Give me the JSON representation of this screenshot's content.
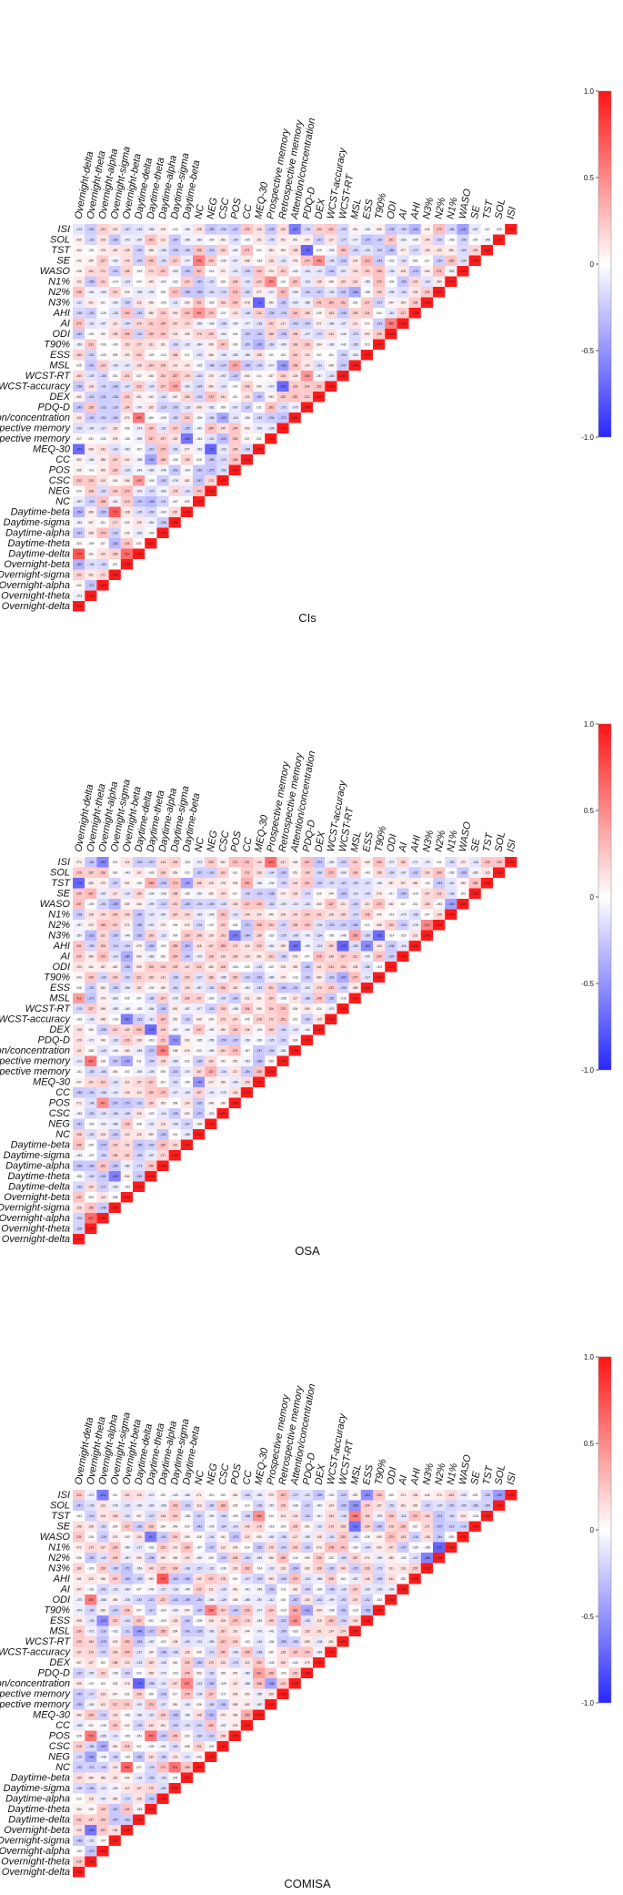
{
  "chart_data": [
    {
      "type": "heatmap",
      "title": "CIs",
      "row_labels": [
        "ISI",
        "SOL",
        "TST",
        "SE",
        "WASO",
        "N1%",
        "N2%",
        "N3%",
        "AHI",
        "AI",
        "ODI",
        "T90%",
        "ESS",
        "MSL",
        "WCST-RT",
        "WCST-accuracy",
        "DEX",
        "PDQ-D",
        "Attention/concentration",
        "Retrospective memory",
        "Prospective memory",
        "MEQ-30",
        "CC",
        "POS",
        "CSC",
        "NEG",
        "NC",
        "Daytime-beta",
        "Daytime-sigma",
        "Daytime-alpha",
        "Daytime-theta",
        "Daytime-delta",
        "Overnight-beta",
        "Overnight-sigma",
        "Overnight-alpha",
        "Overnight-theta",
        "Overnight-delta"
      ],
      "col_labels": [
        "Overnight-delta",
        "Overnight-theta",
        "Overnight-alpha",
        "Overnight-sigma",
        "Overnight-beta",
        "Daytime-delta",
        "Daytime-theta",
        "Daytime-alpha",
        "Daytime-sigma",
        "Daytime-beta",
        "NC",
        "NEG",
        "CSC",
        "POS",
        "CC",
        "MEQ-30",
        "Prospective memory",
        "Retrospective memory",
        "Attention/concentration",
        "PDQ-D",
        "DEX",
        "WCST-accuracy",
        "WCST-RT",
        "MSL",
        "ESS",
        "T90%",
        "ODI",
        "AI",
        "AHI",
        "N3%",
        "N2%",
        "N1%",
        "WASO",
        "SE",
        "TST",
        "SOL",
        "ISI"
      ],
      "highlights": [
        [
          5,
          34,
          0.62
        ],
        [
          2,
          36,
          -0.24
        ],
        [
          3,
          33,
          0.73
        ],
        [
          4,
          33,
          -0.52
        ],
        [
          5,
          31,
          0.48
        ],
        [
          6,
          30,
          -0.79
        ],
        [
          7,
          29,
          -0.61
        ],
        [
          9,
          27,
          0.88
        ],
        [
          10,
          26,
          0.71
        ],
        [
          11,
          25,
          0.64
        ],
        [
          15,
          22,
          -0.56
        ],
        [
          17,
          20,
          0.67
        ],
        [
          18,
          19,
          0.73
        ],
        [
          21,
          16,
          0.45
        ],
        [
          22,
          15,
          0.52
        ],
        [
          24,
          13,
          0.44
        ],
        [
          28,
          9,
          0.58
        ],
        [
          29,
          8,
          0.63
        ],
        [
          30,
          6,
          -0.72
        ],
        [
          31,
          5,
          -0.55
        ],
        [
          33,
          3,
          0.61
        ],
        [
          35,
          1,
          -0.66
        ],
        [
          2,
          26,
          -0.28
        ],
        [
          3,
          24,
          0.31
        ]
      ],
      "colorbar": {
        "min": -1.0,
        "max": 1.0,
        "ticks": [
          "1.0",
          "0.5",
          "0",
          "-0.5",
          "-1.0"
        ]
      },
      "seed": 11
    },
    {
      "type": "heatmap",
      "title": "OSA",
      "row_labels": [
        "ISI",
        "SOL",
        "TST",
        "SE",
        "WASO",
        "N1%",
        "N2%",
        "N3%",
        "AHI",
        "AI",
        "ODI",
        "T90%",
        "ESS",
        "MSL",
        "WCST-RT",
        "WCST-accuracy",
        "DEX",
        "PDQ-D",
        "Attention/concentration",
        "Retrospective memory",
        "Prospective memory",
        "MEQ-30",
        "CC",
        "POS",
        "CSC",
        "NEG",
        "NC",
        "Daytime-beta",
        "Daytime-sigma",
        "Daytime-alpha",
        "Daytime-theta",
        "Daytime-delta",
        "Overnight-beta",
        "Overnight-sigma",
        "Overnight-alpha",
        "Overnight-theta",
        "Overnight-delta"
      ],
      "col_labels": [
        "Overnight-delta",
        "Overnight-theta",
        "Overnight-alpha",
        "Overnight-sigma",
        "Overnight-beta",
        "Daytime-delta",
        "Daytime-theta",
        "Daytime-alpha",
        "Daytime-sigma",
        "Daytime-beta",
        "NC",
        "NEG",
        "CSC",
        "POS",
        "CC",
        "MEQ-30",
        "Prospective memory",
        "Retrospective memory",
        "Attention/concentration",
        "PDQ-D",
        "DEX",
        "WCST-accuracy",
        "WCST-RT",
        "MSL",
        "ESS",
        "T90%",
        "ODI",
        "AI",
        "AHI",
        "N3%",
        "N2%",
        "N1%",
        "WASO",
        "SE",
        "TST",
        "SOL",
        "ISI"
      ],
      "highlights": [
        [
          2,
          34,
          -0.42
        ],
        [
          3,
          33,
          0.75
        ],
        [
          4,
          32,
          -0.58
        ],
        [
          5,
          31,
          -0.67
        ],
        [
          6,
          30,
          0.52
        ],
        [
          8,
          28,
          0.81
        ],
        [
          9,
          27,
          0.74
        ],
        [
          10,
          26,
          0.69
        ],
        [
          13,
          23,
          -0.48
        ],
        [
          14,
          22,
          -0.62
        ],
        [
          17,
          19,
          0.71
        ],
        [
          18,
          18,
          0.66
        ],
        [
          22,
          14,
          0.55
        ],
        [
          26,
          10,
          0.47
        ],
        [
          28,
          8,
          0.68
        ],
        [
          29,
          7,
          -0.71
        ],
        [
          31,
          5,
          0.62
        ],
        [
          32,
          4,
          -0.64
        ],
        [
          34,
          2,
          0.72
        ],
        [
          36,
          0,
          -0.78
        ],
        [
          30,
          3,
          -0.59
        ]
      ],
      "colorbar": {
        "min": -1.0,
        "max": 1.0,
        "ticks": [
          "1.0",
          "0.5",
          "0",
          "-0.5",
          "-1.0"
        ]
      },
      "seed": 37
    },
    {
      "type": "heatmap",
      "title": "COMISA",
      "row_labels": [
        "ISI",
        "SOL",
        "TST",
        "SE",
        "WASO",
        "N1%",
        "N2%",
        "N3%",
        "AHI",
        "AI",
        "ODI",
        "T90%",
        "ESS",
        "MSL",
        "WCST-RT",
        "WCST-accuracy",
        "DEX",
        "PDQ-D",
        "Attention/concentration",
        "Retrospective memory",
        "Prospective memory",
        "MEQ-30",
        "CC",
        "POS",
        "CSC",
        "NEG",
        "NC",
        "Daytime-beta",
        "Daytime-sigma",
        "Daytime-alpha",
        "Daytime-theta",
        "Daytime-delta",
        "Overnight-beta",
        "Overnight-sigma",
        "Overnight-alpha",
        "Overnight-theta",
        "Overnight-delta"
      ],
      "col_labels": [
        "Overnight-delta",
        "Overnight-theta",
        "Overnight-alpha",
        "Overnight-sigma",
        "Overnight-beta",
        "Daytime-delta",
        "Daytime-theta",
        "Daytime-alpha",
        "Daytime-sigma",
        "Daytime-beta",
        "NC",
        "NEG",
        "CSC",
        "POS",
        "CC",
        "MEQ-30",
        "Prospective memory",
        "Retrospective memory",
        "Attention/concentration",
        "PDQ-D",
        "DEX",
        "WCST-accuracy",
        "WCST-RT",
        "MSL",
        "ESS",
        "T90%",
        "ODI",
        "AI",
        "AHI",
        "N3%",
        "N2%",
        "N1%",
        "WASO",
        "SE",
        "TST",
        "SOL",
        "ISI"
      ],
      "highlights": [
        [
          2,
          34,
          0.54
        ],
        [
          3,
          33,
          0.79
        ],
        [
          4,
          32,
          -0.66
        ],
        [
          5,
          30,
          -0.72
        ],
        [
          6,
          29,
          -0.58
        ],
        [
          8,
          28,
          0.83
        ],
        [
          9,
          27,
          0.68
        ],
        [
          10,
          26,
          0.74
        ],
        [
          14,
          22,
          -0.49
        ],
        [
          17,
          19,
          0.62
        ],
        [
          18,
          18,
          0.71
        ],
        [
          21,
          15,
          0.52
        ],
        [
          23,
          13,
          0.46
        ],
        [
          27,
          9,
          0.61
        ],
        [
          28,
          8,
          0.73
        ],
        [
          29,
          7,
          -0.68
        ],
        [
          31,
          5,
          -0.63
        ],
        [
          32,
          4,
          0.58
        ],
        [
          33,
          3,
          -0.71
        ],
        [
          35,
          1,
          0.64
        ],
        [
          36,
          0,
          -0.55
        ]
      ],
      "colorbar": {
        "min": -1.0,
        "max": 1.0,
        "ticks": [
          "1.0",
          "0.5",
          "0",
          "-0.5",
          "-1.0"
        ]
      },
      "seed": 73
    }
  ]
}
